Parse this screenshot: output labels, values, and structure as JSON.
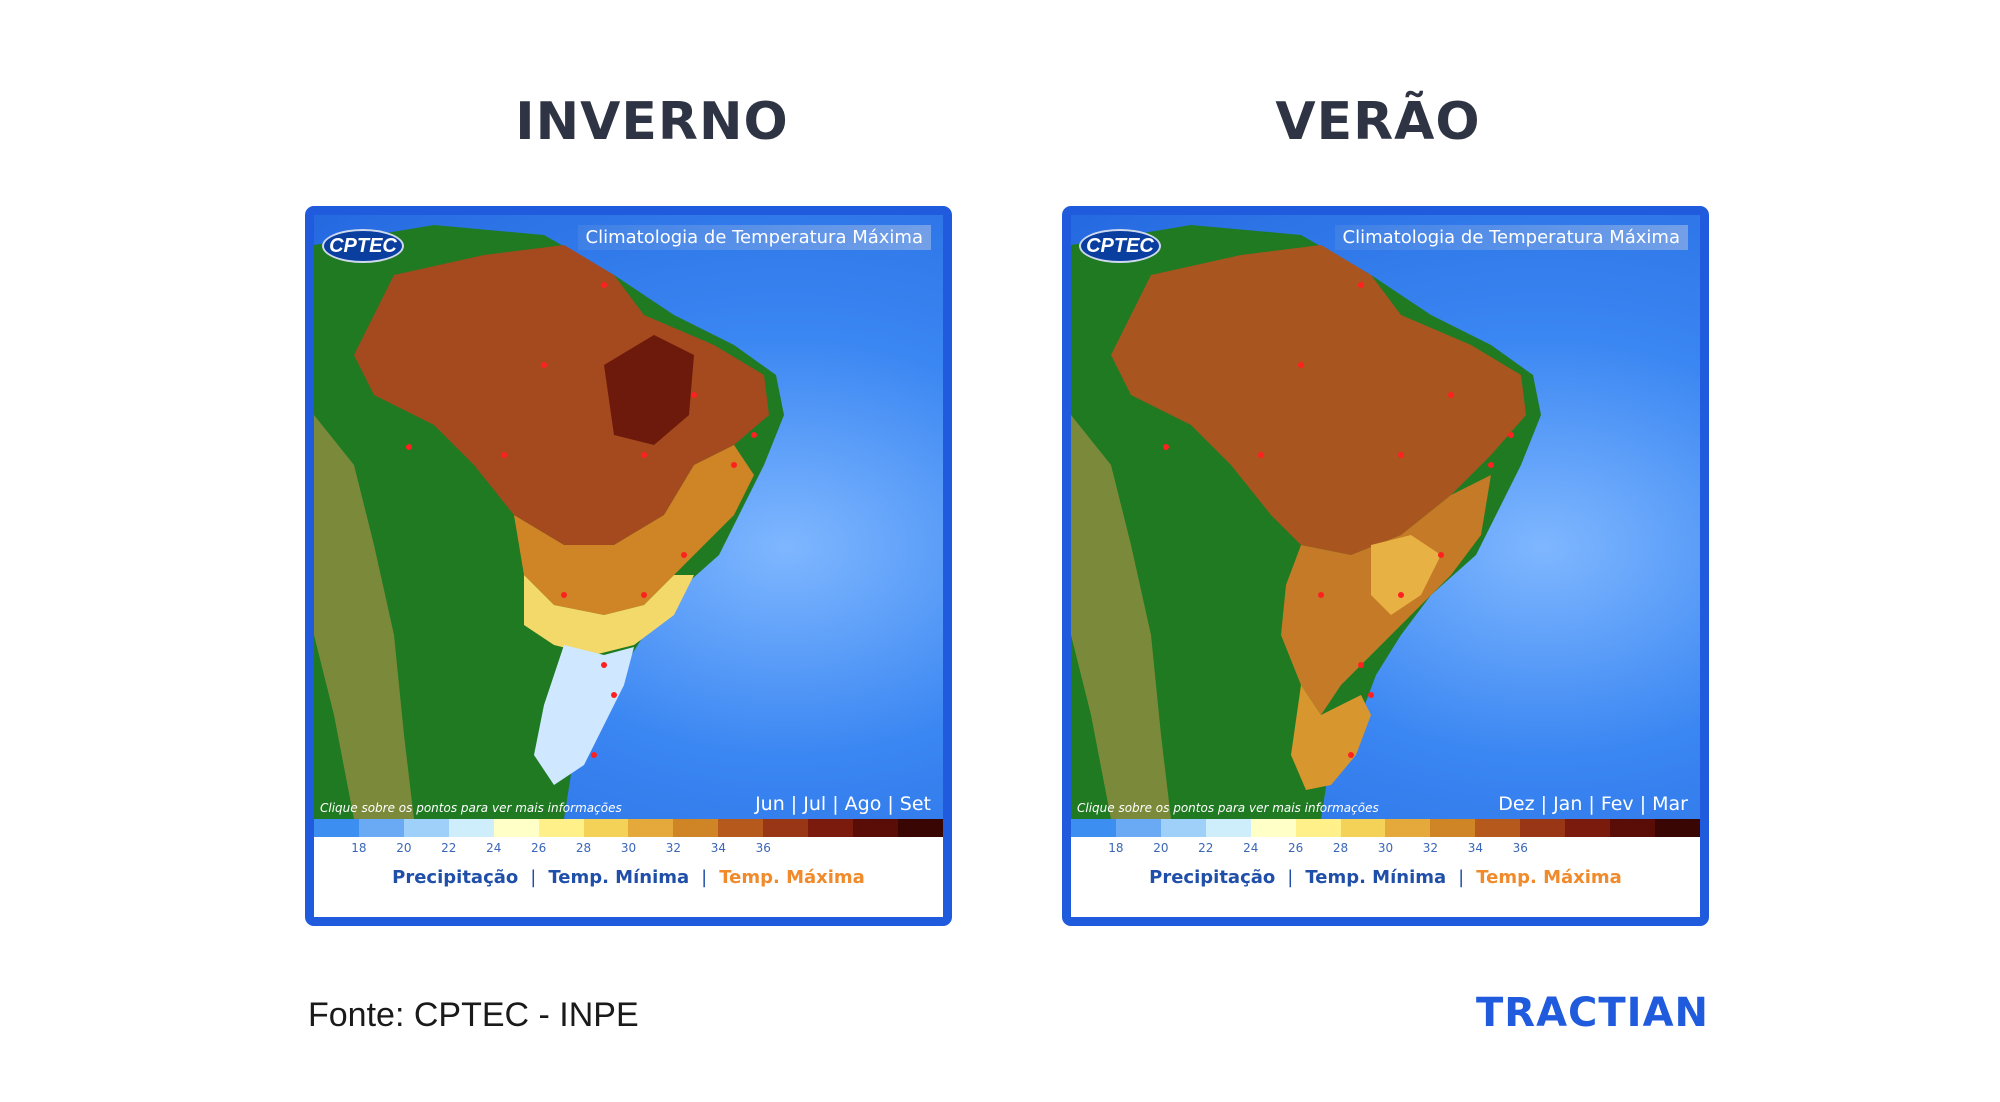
{
  "panels": [
    {
      "season": "INVERNO",
      "map_title": "Climatologia de Temperatura Máxima",
      "logo_text": "CPTEC",
      "click_note": "Clique sobre os pontos para ver mais informações",
      "months": "Jun | Jul | Ago | Set",
      "nav": {
        "precip": "Precipitação",
        "tmin": "Temp. Mínima",
        "tmax": "Temp. Máxima",
        "sep": "|"
      },
      "legend_ticks": [
        "18",
        "20",
        "22",
        "24",
        "26",
        "28",
        "30",
        "32",
        "34",
        "36"
      ]
    },
    {
      "season": "VERÃO",
      "map_title": "Climatologia de Temperatura Máxima",
      "logo_text": "CPTEC",
      "click_note": "Clique sobre os pontos para ver mais informações",
      "months": "Dez | Jan | Fev | Mar",
      "nav": {
        "precip": "Precipitação",
        "tmin": "Temp. Mínima",
        "tmax": "Temp. Máxima",
        "sep": "|"
      },
      "legend_ticks": [
        "18",
        "20",
        "22",
        "24",
        "26",
        "28",
        "30",
        "32",
        "34",
        "36"
      ]
    }
  ],
  "legend_colors": [
    "#3c8ef0",
    "#6aaaf5",
    "#9fd0fa",
    "#cfeefc",
    "#ffffc8",
    "#fff08a",
    "#f3d257",
    "#e4a93a",
    "#cf8426",
    "#b55a1c",
    "#983616",
    "#7a1b0e",
    "#5a0d07",
    "#3a0603"
  ],
  "colors": {
    "frame": "#1f5bdc",
    "ocean": "#2f7fef",
    "land_green": "#1f7a22",
    "andes": "#7b8a3a",
    "hot": "#a44a1e",
    "warm": "#d08a2a",
    "mild": "#f3d86a",
    "cool": "#d4ecff",
    "city_dot": "#ff2020",
    "active_link": "#f08a2a",
    "link": "#1f4fa8"
  },
  "footer": {
    "source": "Fonte: CPTEC - INPE",
    "brand": "TRACTIAN"
  }
}
